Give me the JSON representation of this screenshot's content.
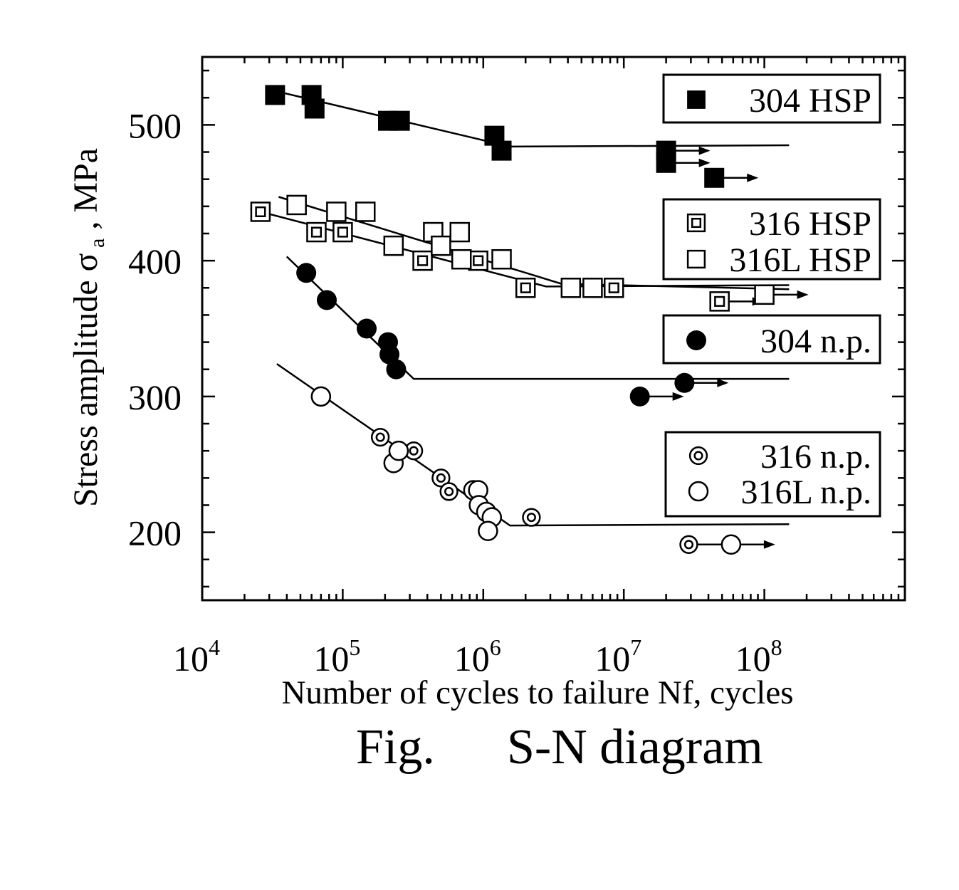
{
  "chart_data": {
    "type": "scatter",
    "caption": {
      "fig": "Fig.",
      "title": "S-N diagram"
    },
    "xlabel": "Number of cycles to failure  Nf, cycles",
    "ylabel": {
      "main": "Stress amplitude  ",
      "sigma": "σ",
      "sub": "a",
      "unit": " , MPa"
    },
    "x_scale": "log",
    "xlim": [
      10000,
      1000000000
    ],
    "ylim": [
      150,
      550
    ],
    "x_ticks": [
      {
        "value": 10000,
        "base": "10",
        "exp": "4"
      },
      {
        "value": 100000,
        "base": "10",
        "exp": "5"
      },
      {
        "value": 1000000,
        "base": "10",
        "exp": "6"
      },
      {
        "value": 10000000,
        "base": "10",
        "exp": "7"
      },
      {
        "value": 100000000,
        "base": "10",
        "exp": "8"
      }
    ],
    "y_ticks": [
      200,
      300,
      400,
      500
    ],
    "grid": false,
    "series": [
      {
        "name": "304 HSP",
        "marker": "filled-square",
        "points": [
          {
            "x": 33000,
            "y": 522
          },
          {
            "x": 60000,
            "y": 522
          },
          {
            "x": 63000,
            "y": 512
          },
          {
            "x": 210000,
            "y": 503
          },
          {
            "x": 255000,
            "y": 503
          },
          {
            "x": 1200000,
            "y": 492
          },
          {
            "x": 1350000,
            "y": 481
          },
          {
            "x": 20000000,
            "y": 481
          },
          {
            "x": 20000000,
            "y": 472
          },
          {
            "x": 44000000,
            "y": 461
          }
        ],
        "runouts": [
          {
            "x": 20000000,
            "y": 481
          },
          {
            "x": 20000000,
            "y": 472
          },
          {
            "x": 44000000,
            "y": 461
          }
        ],
        "fit": [
          {
            "x": 30000,
            "y": 526
          },
          {
            "x": 1550000,
            "y": 484
          },
          {
            "x": 150000000,
            "y": 485
          }
        ]
      },
      {
        "name": "316 HSP",
        "marker": "double-square",
        "points": [
          {
            "x": 26000,
            "y": 436
          },
          {
            "x": 65000,
            "y": 421
          },
          {
            "x": 100000,
            "y": 421
          },
          {
            "x": 370000,
            "y": 400
          },
          {
            "x": 920000,
            "y": 400
          },
          {
            "x": 2000000,
            "y": 380
          },
          {
            "x": 8500000,
            "y": 380
          },
          {
            "x": 48000000,
            "y": 370
          }
        ],
        "runouts": [
          {
            "x": 48000000,
            "y": 370
          }
        ],
        "fit": [
          {
            "x": 22000,
            "y": 438
          },
          {
            "x": 2800000,
            "y": 381
          },
          {
            "x": 150000000,
            "y": 382
          }
        ]
      },
      {
        "name": "316L HSP",
        "marker": "open-square",
        "points": [
          {
            "x": 47000,
            "y": 441
          },
          {
            "x": 90000,
            "y": 436
          },
          {
            "x": 145000,
            "y": 436
          },
          {
            "x": 230000,
            "y": 411
          },
          {
            "x": 440000,
            "y": 421
          },
          {
            "x": 500000,
            "y": 411
          },
          {
            "x": 680000,
            "y": 421
          },
          {
            "x": 700000,
            "y": 401
          },
          {
            "x": 1350000,
            "y": 401
          },
          {
            "x": 4200000,
            "y": 380
          },
          {
            "x": 6000000,
            "y": 380
          },
          {
            "x": 100000000,
            "y": 375
          }
        ],
        "runouts": [
          {
            "x": 100000000,
            "y": 375
          }
        ],
        "fit": [
          {
            "x": 35000,
            "y": 447
          },
          {
            "x": 3600000,
            "y": 383
          },
          {
            "x": 150000000,
            "y": 379
          }
        ]
      },
      {
        "name": "304 n.p.",
        "marker": "filled-circle",
        "points": [
          {
            "x": 55000,
            "y": 391
          },
          {
            "x": 77000,
            "y": 371
          },
          {
            "x": 148000,
            "y": 350
          },
          {
            "x": 210000,
            "y": 340
          },
          {
            "x": 215000,
            "y": 331
          },
          {
            "x": 240000,
            "y": 320
          },
          {
            "x": 13000000,
            "y": 300
          },
          {
            "x": 27000000,
            "y": 310
          }
        ],
        "runouts": [
          {
            "x": 13000000,
            "y": 300
          },
          {
            "x": 27000000,
            "y": 310
          }
        ],
        "fit": [
          {
            "x": 40000,
            "y": 403
          },
          {
            "x": 320000,
            "y": 313
          },
          {
            "x": 150000000,
            "y": 313
          }
        ]
      },
      {
        "name": "316 n.p.",
        "marker": "double-circle",
        "points": [
          {
            "x": 185000,
            "y": 270
          },
          {
            "x": 320000,
            "y": 260
          },
          {
            "x": 500000,
            "y": 240
          },
          {
            "x": 570000,
            "y": 230
          },
          {
            "x": 2200000,
            "y": 211
          },
          {
            "x": 29000000,
            "y": 191
          }
        ],
        "runouts": [
          {
            "x": 29000000,
            "y": 191
          }
        ],
        "fit": []
      },
      {
        "name": "316L n.p.",
        "marker": "open-circle",
        "points": [
          {
            "x": 70000,
            "y": 300
          },
          {
            "x": 230000,
            "y": 251
          },
          {
            "x": 250000,
            "y": 260
          },
          {
            "x": 850000,
            "y": 231
          },
          {
            "x": 920000,
            "y": 231
          },
          {
            "x": 930000,
            "y": 220
          },
          {
            "x": 1050000,
            "y": 215
          },
          {
            "x": 1150000,
            "y": 211
          },
          {
            "x": 1080000,
            "y": 201
          },
          {
            "x": 58000000,
            "y": 191
          }
        ],
        "runouts": [
          {
            "x": 58000000,
            "y": 191
          }
        ],
        "fit": [
          {
            "x": 34000,
            "y": 324
          },
          {
            "x": 1550000,
            "y": 205
          },
          {
            "x": 150000000,
            "y": 206
          }
        ]
      }
    ],
    "legend_boxes": [
      {
        "entries": [
          0
        ]
      },
      {
        "entries": [
          1,
          2
        ]
      },
      {
        "entries": [
          3
        ]
      },
      {
        "entries": [
          4,
          5
        ]
      }
    ],
    "legend_placement": "right, stacked beside each data group"
  }
}
